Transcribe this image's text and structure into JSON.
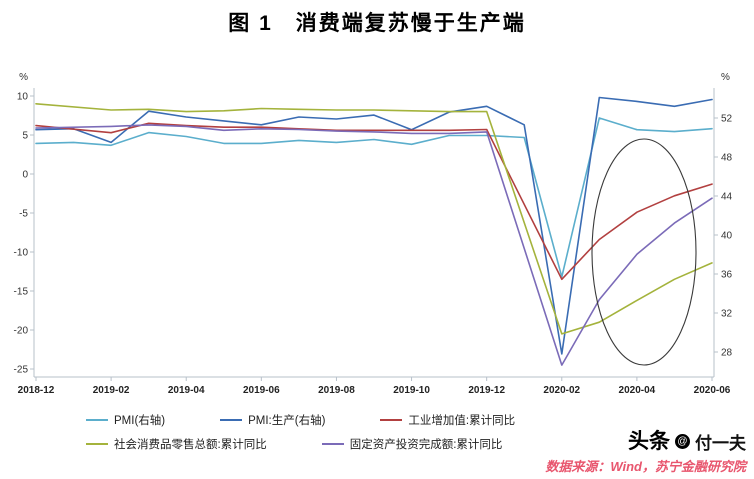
{
  "title": "图 1　消费端复苏慢于生产端",
  "chart_data": {
    "type": "line",
    "x": [
      "2018-12",
      "2019-01",
      "2019-02",
      "2019-03",
      "2019-04",
      "2019-05",
      "2019-06",
      "2019-07",
      "2019-08",
      "2019-09",
      "2019-10",
      "2019-11",
      "2019-12",
      "2020-01",
      "2020-02",
      "2020-03",
      "2020-04",
      "2020-05",
      "2020-06"
    ],
    "x_tick_labels": [
      "2018-12",
      "2019-02",
      "2019-04",
      "2019-06",
      "2019-08",
      "2019-10",
      "2019-12",
      "2020-02",
      "2020-04",
      "2020-06"
    ],
    "left_axis": {
      "unit": "%",
      "ticks": [
        10,
        5,
        0,
        -5,
        -10,
        -15,
        -20,
        -25
      ]
    },
    "right_axis": {
      "unit": "%",
      "ticks": [
        52,
        48,
        44,
        40,
        36,
        32,
        28
      ]
    },
    "grid": false,
    "legend_position": "bottom",
    "annotation": "hand-drawn ellipse circling the 2020-03 to 2020-06 recovery segment",
    "series": [
      {
        "name": "PMI(右轴)",
        "axis": "right",
        "color": "#5BAECC",
        "values": [
          49.4,
          49.5,
          49.2,
          50.5,
          50.1,
          49.4,
          49.4,
          49.7,
          49.5,
          49.8,
          49.3,
          50.2,
          50.2,
          50.0,
          35.7,
          52.0,
          50.8,
          50.6,
          50.9
        ]
      },
      {
        "name": "PMI:生产(右轴)",
        "axis": "right",
        "color": "#3A6CB3",
        "values": [
          50.8,
          50.9,
          49.5,
          52.7,
          52.1,
          51.7,
          51.3,
          52.1,
          51.9,
          52.3,
          50.8,
          52.6,
          53.2,
          51.3,
          27.8,
          54.1,
          53.7,
          53.2,
          53.9
        ]
      },
      {
        "name": "工业增加值:累计同比",
        "axis": "left",
        "color": "#B24040",
        "values": [
          6.2,
          null,
          5.3,
          6.5,
          6.2,
          6.0,
          6.0,
          5.8,
          5.6,
          5.6,
          5.6,
          5.6,
          5.7,
          null,
          -13.5,
          -8.4,
          -4.9,
          -2.8,
          -1.3
        ]
      },
      {
        "name": "社会消费品零售总额:累计同比",
        "axis": "left",
        "color": "#A4B33C",
        "values": [
          9.0,
          null,
          8.2,
          8.3,
          8.0,
          8.1,
          8.4,
          8.3,
          8.2,
          8.2,
          8.1,
          8.0,
          8.0,
          null,
          -20.5,
          -19.0,
          -16.2,
          -13.5,
          -11.4
        ]
      },
      {
        "name": "固定资产投资完成额:累计同比",
        "axis": "left",
        "color": "#7B6BB8",
        "values": [
          5.9,
          null,
          6.1,
          6.3,
          6.1,
          5.6,
          5.8,
          5.7,
          5.5,
          5.4,
          5.2,
          5.2,
          5.4,
          null,
          -24.5,
          -16.1,
          -10.3,
          -6.3,
          -3.1
        ]
      }
    ]
  },
  "footer": {
    "brand": "头条",
    "author": "付一夫",
    "source": "数据来源：Wind，苏宁金融研究院"
  }
}
